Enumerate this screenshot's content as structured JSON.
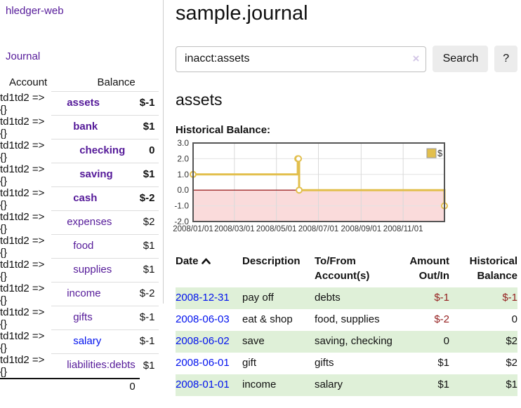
{
  "app": {
    "title": "hledger-web",
    "nav_journal": "Journal"
  },
  "sidebar": {
    "header": {
      "account": "Account",
      "balance": "Balance"
    },
    "accounts": [
      {
        "name": "assets",
        "balance": "$-1",
        "indent": 1,
        "bold": true,
        "negative": "strong",
        "link": "purple"
      },
      {
        "name": "bank",
        "balance": "$1",
        "indent": 2,
        "bold": true,
        "negative": null,
        "link": "purple"
      },
      {
        "name": "checking",
        "balance": "0",
        "indent": 3,
        "bold": true,
        "negative": null,
        "link": "purple"
      },
      {
        "name": "saving",
        "balance": "$1",
        "indent": 3,
        "bold": true,
        "negative": null,
        "link": "purple"
      },
      {
        "name": "cash",
        "balance": "$-2",
        "indent": 2,
        "bold": true,
        "negative": "strong",
        "link": "purple"
      },
      {
        "name": "expenses",
        "balance": "$2",
        "indent": 1,
        "bold": false,
        "negative": null,
        "link": "purple"
      },
      {
        "name": "food",
        "balance": "$1",
        "indent": 2,
        "bold": false,
        "negative": null,
        "link": "purple"
      },
      {
        "name": "supplies",
        "balance": "$1",
        "indent": 2,
        "bold": false,
        "negative": null,
        "link": "purple"
      },
      {
        "name": "income",
        "balance": "$-2",
        "indent": 1,
        "bold": false,
        "negative": "soft",
        "link": "purple"
      },
      {
        "name": "gifts",
        "balance": "$-1",
        "indent": 2,
        "bold": false,
        "negative": "soft",
        "link": "purple"
      },
      {
        "name": "salary",
        "balance": "$-1",
        "indent": 2,
        "bold": false,
        "negative": "soft",
        "link": "blue"
      },
      {
        "name": "liabilities:debts",
        "balance": "$1",
        "indent": 1,
        "bold": false,
        "negative": null,
        "link": "purple"
      }
    ],
    "total_balance": "0"
  },
  "main": {
    "title": "sample.journal",
    "search": {
      "value": "inacct:assets",
      "clear_icon": "×",
      "button_label": "Search",
      "help_label": "?"
    },
    "account_title": "assets",
    "chart_label": "Historical Balance:"
  },
  "chart_data": {
    "type": "line",
    "step": true,
    "series": [
      {
        "name": "$",
        "x": [
          "2008-01-01",
          "2008-06-01",
          "2008-06-02",
          "2008-06-03",
          "2008-12-31"
        ],
        "values": [
          1,
          2,
          2,
          0,
          -1
        ]
      }
    ],
    "title": "Historical Balance:",
    "ylim": [
      -2,
      3
    ],
    "yticks": [
      3.0,
      2.0,
      1.0,
      0.0,
      -1.0,
      -2.0
    ],
    "xticks": [
      "2008/01/01",
      "2008/03/01",
      "2008/05/01",
      "2008/07/01",
      "2008/09/01",
      "2008/11/01"
    ],
    "legend": "$",
    "legend_position": "top-right",
    "grid": true,
    "line_color": "#e2bf4d",
    "negative_region_fill": "#fadbdb",
    "zero_line_color": "#8b0000"
  },
  "register_table": {
    "header": {
      "date": "Date",
      "description": "Description",
      "accounts": "To/From Account(s)",
      "amount": "Amount Out/In",
      "balance": "Historical Balance"
    },
    "sort": {
      "column": "date",
      "direction": "ascending"
    },
    "rows": [
      {
        "date": "2008-12-31",
        "description": "pay off",
        "accounts": "debts",
        "amount": "$-1",
        "amount_negative": true,
        "balance": "$-1",
        "balance_negative": true,
        "highlighted": true
      },
      {
        "date": "2008-06-03",
        "description": "eat & shop",
        "accounts": "food, supplies",
        "amount": "$-2",
        "amount_negative": true,
        "balance": "0",
        "balance_negative": false,
        "highlighted": false
      },
      {
        "date": "2008-06-02",
        "description": "save",
        "accounts": "saving, checking",
        "amount": "0",
        "amount_negative": false,
        "balance": "$2",
        "balance_negative": false,
        "highlighted": true
      },
      {
        "date": "2008-06-01",
        "description": "gift",
        "accounts": "gifts",
        "amount": "$1",
        "amount_negative": false,
        "balance": "$2",
        "balance_negative": false,
        "highlighted": false
      },
      {
        "date": "2008-01-01",
        "description": "income",
        "accounts": "salary",
        "amount": "$1",
        "amount_negative": false,
        "balance": "$1",
        "balance_negative": false,
        "highlighted": true
      }
    ]
  },
  "colors": {
    "link_purple": "#551a99",
    "link_blue": "#0011ee",
    "negative_strong": "#941f1f",
    "negative_soft": "#c4797f",
    "row_highlight_green": "#dff0d8",
    "chart_line_gold": "#e2bf4d",
    "chart_negative_pink": "#fadbdb",
    "chart_zero_line_red": "#8b0000",
    "button_background": "#ececec"
  }
}
